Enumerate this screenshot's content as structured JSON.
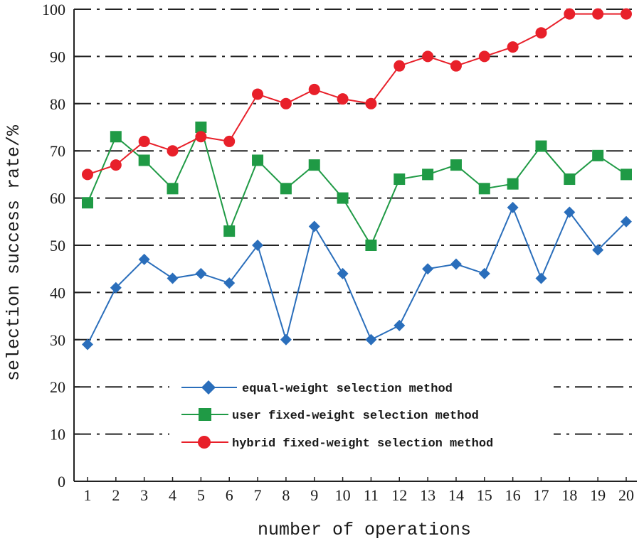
{
  "chart_data": {
    "type": "line",
    "title": "",
    "xlabel": "number of operations",
    "ylabel": "selection success rate/%",
    "categories": [
      "1",
      "2",
      "3",
      "4",
      "5",
      "6",
      "7",
      "8",
      "9",
      "10",
      "11",
      "12",
      "13",
      "14",
      "15",
      "16",
      "17",
      "18",
      "19",
      "20"
    ],
    "ylim": [
      0,
      100
    ],
    "yticks": [
      0,
      10,
      20,
      30,
      40,
      50,
      60,
      70,
      80,
      90,
      100
    ],
    "grid": "horizontal dash-dot",
    "legend_position": "bottom-center",
    "series": [
      {
        "name": "equal-weight selection method",
        "color": "#2a6ebb",
        "marker": "diamond",
        "values": [
          29,
          41,
          47,
          43,
          44,
          42,
          50,
          30,
          54,
          44,
          30,
          33,
          45,
          46,
          44,
          58,
          43,
          57,
          49,
          55
        ]
      },
      {
        "name": "user fixed-weight selection method",
        "color": "#1f9a45",
        "marker": "square",
        "values": [
          59,
          73,
          68,
          62,
          75,
          53,
          68,
          62,
          67,
          60,
          50,
          64,
          65,
          67,
          62,
          63,
          71,
          64,
          69,
          65
        ]
      },
      {
        "name": "hybrid fixed-weight selection method",
        "color": "#e8202a",
        "marker": "circle",
        "values": [
          65,
          67,
          72,
          70,
          73,
          72,
          82,
          80,
          83,
          81,
          80,
          88,
          90,
          88,
          90,
          92,
          95,
          99,
          99,
          99
        ]
      }
    ]
  }
}
